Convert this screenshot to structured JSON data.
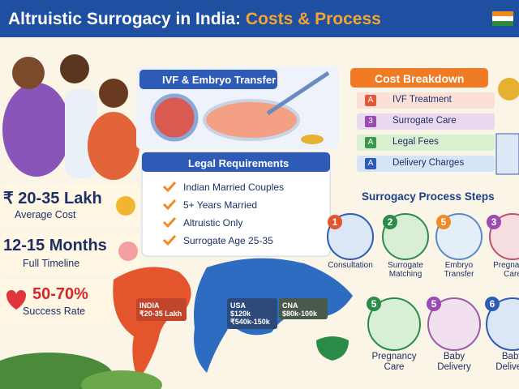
{
  "header": {
    "title_main": "Altruistic Surrogacy in India:",
    "title_accent": "Costs & Process"
  },
  "stats": [
    {
      "value": "₹ 20-35 Lakh",
      "label": "Average Cost"
    },
    {
      "value": "12-15 Months",
      "label": "Full Timeline"
    },
    {
      "value": "50-70%",
      "label": "Success Rate"
    }
  ],
  "ivf": {
    "title": "IVF & Embryo Transfer"
  },
  "legal": {
    "title": "Legal Requirements",
    "items": [
      "Indian Married Couples",
      "5+ Years Married",
      "Altruistic Only",
      "Surrogate Age 25-35"
    ]
  },
  "costs": {
    "title": "Cost Breakdown",
    "items": [
      {
        "icon": "A",
        "label": "IVF Treatment"
      },
      {
        "icon": "3",
        "label": "Surrogate Care"
      },
      {
        "icon": "A",
        "label": "Legal Fees"
      },
      {
        "icon": "A",
        "label": "Delivery Charges"
      }
    ]
  },
  "process": {
    "title": "Surrogacy Process Steps",
    "steps": [
      {
        "number": "1",
        "label": "Consultation"
      },
      {
        "number": "2",
        "label": "Surrogate Matching"
      },
      {
        "number": "5",
        "label": "Embryo Transfer"
      },
      {
        "number": "3",
        "label": "Pregnancy Care"
      },
      {
        "number": "5",
        "label": "Pregnancy Care"
      },
      {
        "number": "5",
        "label": "Baby Delivery"
      },
      {
        "number": "6",
        "label": "Baby Delivery"
      }
    ]
  },
  "map": {
    "labels": [
      {
        "country": "INDIA",
        "cost": "₹20-35 Lakh"
      },
      {
        "country": "USA",
        "cost": "$120k",
        "cost2": "₹540k-150k"
      },
      {
        "country": "CNA",
        "cost": "$80k-100k"
      }
    ]
  }
}
